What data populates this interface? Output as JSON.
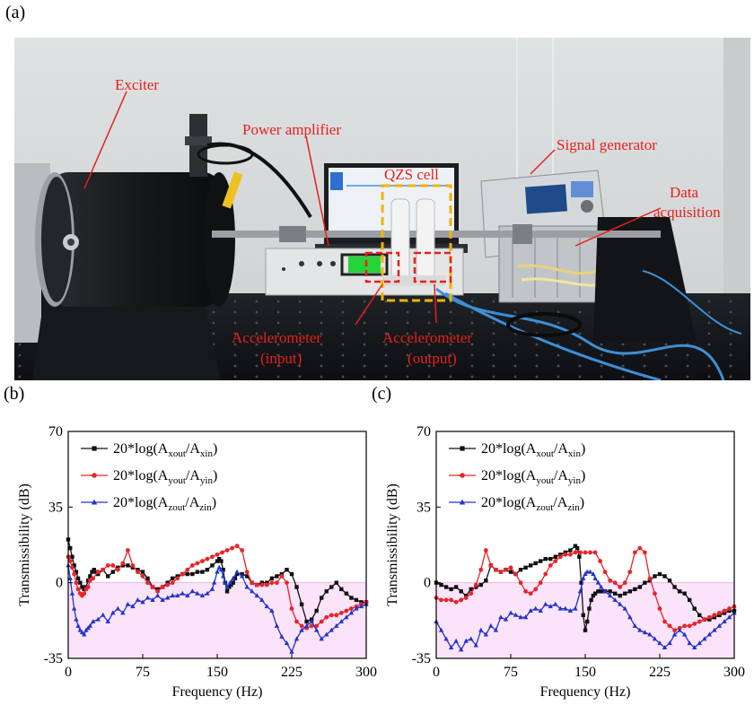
{
  "panel_labels": {
    "a": "(a)",
    "b": "(b)",
    "c": "(c)"
  },
  "photo": {
    "annotations": {
      "exciter": "Exciter",
      "power_amplifier": "Power amplifier",
      "qzs_cell": "QZS cell",
      "signal_generator": "Signal generator",
      "data_acquisition_1": "Data",
      "data_acquisition_2": "acquisition",
      "acc_in_1": "Accelerometer",
      "acc_in_2": "(input)",
      "acc_out_1": "Accelerometer",
      "acc_out_2": "(output)"
    },
    "colors": {
      "annotation": "#e8201a",
      "qzs_box": "#f0b400",
      "sensor_box": "#e8201a"
    }
  },
  "chart_data": [
    {
      "panel": "(b)",
      "type": "line",
      "xlabel": "Frequency (Hz)",
      "ylabel": "Transmissibility (dB)",
      "xlim": [
        0,
        300
      ],
      "ylim": [
        -35,
        70
      ],
      "xticks": [
        0,
        75,
        150,
        225,
        300
      ],
      "yticks": [
        -35,
        0,
        35,
        70
      ],
      "shade": {
        "from": -35,
        "to": 0,
        "color": "#fbe3fa"
      },
      "legend_position": "top-left",
      "series": [
        {
          "name": "20*log(A_xout/A_xin)",
          "legend": {
            "base": "20*log(A",
            "sub1": "xout",
            "mid": "/A",
            "sub2": "xin",
            "end": ")"
          },
          "color": "#111111",
          "marker": "square",
          "x": [
            0,
            2,
            4,
            6,
            8,
            10,
            12,
            14,
            16,
            18,
            20,
            22,
            24,
            26,
            28,
            30,
            35,
            40,
            45,
            50,
            55,
            60,
            65,
            70,
            75,
            80,
            85,
            90,
            95,
            100,
            105,
            110,
            115,
            120,
            125,
            130,
            135,
            140,
            145,
            150,
            152,
            154,
            156,
            158,
            160,
            162,
            164,
            166,
            168,
            170,
            175,
            180,
            185,
            190,
            195,
            200,
            205,
            210,
            215,
            220,
            225,
            230,
            235,
            240,
            245,
            250,
            255,
            260,
            265,
            270,
            275,
            280,
            285,
            290,
            295,
            300
          ],
          "y": [
            20,
            16,
            12,
            8,
            5,
            2,
            0,
            -2,
            -3,
            -2,
            1,
            3,
            5,
            6,
            5,
            4,
            6,
            3,
            5,
            7,
            8,
            8,
            7,
            6,
            5,
            2,
            -2,
            -3,
            -2,
            0,
            2,
            3,
            4,
            4,
            4,
            5,
            5,
            6,
            8,
            10,
            11,
            10,
            6,
            0,
            -4,
            -2,
            -1,
            0,
            2,
            4,
            4,
            3,
            0,
            -1,
            0,
            0,
            2,
            3,
            4,
            6,
            4,
            -2,
            -10,
            -18,
            -17,
            -13,
            -7,
            -4,
            -2,
            0,
            -3,
            -5,
            -7,
            -8,
            -9,
            -9
          ]
        },
        {
          "name": "20*log(A_yout/A_yin)",
          "legend": {
            "base": "20*log(A",
            "sub1": "yout",
            "mid": "/A",
            "sub2": "yin",
            "end": ")"
          },
          "color": "#e8252a",
          "marker": "circle",
          "x": [
            0,
            2,
            4,
            6,
            8,
            10,
            12,
            14,
            16,
            18,
            20,
            22,
            25,
            30,
            35,
            40,
            45,
            50,
            55,
            60,
            65,
            70,
            75,
            80,
            85,
            90,
            95,
            100,
            105,
            110,
            115,
            120,
            125,
            130,
            135,
            140,
            145,
            150,
            155,
            160,
            165,
            170,
            175,
            180,
            185,
            190,
            195,
            200,
            205,
            210,
            215,
            220,
            225,
            230,
            235,
            240,
            245,
            250,
            255,
            260,
            265,
            270,
            275,
            280,
            285,
            290,
            295,
            300
          ],
          "y": [
            12,
            10,
            7,
            4,
            0,
            -3,
            -5,
            -6,
            -5,
            -3,
            -2,
            1,
            2,
            5,
            6,
            8,
            8,
            6,
            9,
            15,
            8,
            5,
            3,
            0,
            -2,
            -4,
            -2,
            -1,
            0,
            2,
            4,
            6,
            8,
            9,
            10,
            11,
            12,
            13,
            14,
            15,
            16,
            17,
            15,
            5,
            0,
            -1,
            -1,
            -1,
            0,
            0,
            3,
            0,
            -12,
            -18,
            -20,
            -21,
            -20,
            -20,
            -18,
            -16,
            -15,
            -15,
            -14,
            -13,
            -12,
            -11,
            -10,
            -9
          ]
        },
        {
          "name": "20*log(A_zout/A_zin)",
          "legend": {
            "base": "20*log(A",
            "sub1": "zout",
            "mid": "/A",
            "sub2": "zin",
            "end": ")"
          },
          "color": "#2235c8",
          "marker": "triangle",
          "x": [
            0,
            2,
            4,
            6,
            8,
            10,
            12,
            14,
            16,
            18,
            20,
            22,
            25,
            30,
            35,
            40,
            45,
            50,
            55,
            60,
            65,
            70,
            75,
            80,
            85,
            90,
            95,
            100,
            105,
            110,
            115,
            120,
            125,
            130,
            135,
            140,
            145,
            147,
            150,
            152,
            154,
            156,
            158,
            160,
            163,
            166,
            170,
            175,
            180,
            185,
            190,
            195,
            200,
            205,
            210,
            215,
            220,
            225,
            230,
            235,
            240,
            245,
            250,
            255,
            260,
            265,
            270,
            275,
            280,
            285,
            290,
            295,
            300
          ],
          "y": [
            8,
            2,
            -5,
            -12,
            -17,
            -20,
            -22,
            -23,
            -24,
            -22,
            -21,
            -20,
            -18,
            -17,
            -15,
            -18,
            -14,
            -12,
            -14,
            -10,
            -11,
            -8,
            -9,
            -7,
            -8,
            -6,
            -8,
            -7,
            -6,
            -6,
            -5,
            -6,
            -4,
            -5,
            -6,
            -5,
            -3,
            0,
            5,
            7,
            6,
            3,
            0,
            -2,
            0,
            2,
            5,
            3,
            -2,
            -4,
            -6,
            -8,
            -11,
            -13,
            -20,
            -25,
            -28,
            -32,
            -26,
            -22,
            -20,
            -18,
            -22,
            -26,
            -24,
            -22,
            -20,
            -18,
            -16,
            -14,
            -12,
            -11,
            -10
          ]
        }
      ]
    },
    {
      "panel": "(c)",
      "type": "line",
      "xlabel": "Frequency (Hz)",
      "ylabel": "Transmissibility (dB)",
      "xlim": [
        0,
        300
      ],
      "ylim": [
        -35,
        70
      ],
      "xticks": [
        0,
        75,
        150,
        225,
        300
      ],
      "yticks": [
        -35,
        0,
        35,
        70
      ],
      "shade": {
        "from": -35,
        "to": 0,
        "color": "#fbe3fa"
      },
      "legend_position": "top-left",
      "series": [
        {
          "name": "20*log(A_xout/A_xin)",
          "legend": {
            "base": "20*log(A",
            "sub1": "xout",
            "mid": "/A",
            "sub2": "xin",
            "end": ")"
          },
          "color": "#111111",
          "marker": "square",
          "x": [
            0,
            5,
            10,
            15,
            20,
            25,
            30,
            35,
            40,
            45,
            50,
            55,
            60,
            65,
            70,
            75,
            80,
            85,
            90,
            95,
            100,
            105,
            110,
            115,
            120,
            125,
            130,
            135,
            140,
            142,
            144,
            146,
            148,
            150,
            152,
            154,
            156,
            158,
            160,
            163,
            166,
            170,
            175,
            180,
            185,
            190,
            195,
            200,
            205,
            210,
            215,
            220,
            225,
            230,
            235,
            240,
            245,
            250,
            255,
            260,
            265,
            270,
            275,
            280,
            285,
            290,
            295,
            300
          ],
          "y": [
            0,
            -1,
            -2,
            -3,
            -2,
            -4,
            -6,
            -3,
            -2,
            -1,
            1,
            8,
            6,
            5,
            6,
            5,
            4,
            6,
            7,
            8,
            9,
            10,
            11,
            11,
            12,
            13,
            14,
            15,
            17,
            16,
            12,
            0,
            -15,
            -22,
            -18,
            -12,
            -8,
            -6,
            -5,
            -4,
            -4,
            -4,
            -4,
            -5,
            -6,
            -5,
            -4,
            -3,
            -2,
            0,
            1,
            3,
            4,
            3,
            1,
            -2,
            -4,
            -5,
            -8,
            -12,
            -15,
            -17,
            -17,
            -16,
            -15,
            -14,
            -13,
            -13
          ]
        },
        {
          "name": "20*log(A_yout/A_yin)",
          "legend": {
            "base": "20*log(A",
            "sub1": "yout",
            "mid": "/A",
            "sub2": "yin",
            "end": ")"
          },
          "color": "#e8252a",
          "marker": "circle",
          "x": [
            0,
            5,
            10,
            15,
            20,
            25,
            30,
            35,
            40,
            45,
            50,
            55,
            60,
            65,
            70,
            75,
            80,
            85,
            90,
            95,
            100,
            105,
            110,
            115,
            120,
            125,
            130,
            135,
            140,
            145,
            150,
            155,
            160,
            165,
            170,
            175,
            180,
            185,
            190,
            195,
            200,
            205,
            210,
            215,
            220,
            225,
            230,
            235,
            240,
            245,
            250,
            255,
            260,
            265,
            270,
            275,
            280,
            285,
            290,
            295,
            300
          ],
          "y": [
            -7,
            -8,
            -8,
            -8,
            -9,
            -8,
            -7,
            -5,
            -1,
            6,
            15,
            8,
            6,
            5,
            6,
            7,
            4,
            0,
            -4,
            -5,
            -3,
            0,
            4,
            8,
            10,
            12,
            13,
            13,
            14,
            14,
            14,
            14,
            14,
            10,
            5,
            1,
            0,
            -2,
            0,
            5,
            14,
            16,
            14,
            2,
            -5,
            -12,
            -18,
            -20,
            -22,
            -21,
            -20,
            -20,
            -19,
            -18,
            -17,
            -16,
            -15,
            -14,
            -13,
            -12,
            -11
          ]
        },
        {
          "name": "20*log(A_zout/A_zin)",
          "legend": {
            "base": "20*log(A",
            "sub1": "zout",
            "mid": "/A",
            "sub2": "zin",
            "end": ")"
          },
          "color": "#2235c8",
          "marker": "triangle",
          "x": [
            0,
            5,
            10,
            15,
            20,
            25,
            30,
            35,
            40,
            45,
            50,
            55,
            60,
            65,
            70,
            75,
            80,
            85,
            90,
            95,
            100,
            105,
            110,
            115,
            120,
            125,
            130,
            135,
            140,
            145,
            148,
            150,
            152,
            155,
            158,
            160,
            163,
            166,
            170,
            175,
            180,
            185,
            190,
            195,
            200,
            205,
            210,
            215,
            220,
            225,
            230,
            235,
            240,
            245,
            250,
            255,
            260,
            265,
            270,
            275,
            280,
            285,
            290,
            295,
            300
          ],
          "y": [
            -18,
            -22,
            -26,
            -30,
            -27,
            -31,
            -27,
            -26,
            -29,
            -22,
            -24,
            -20,
            -22,
            -16,
            -17,
            -14,
            -15,
            -16,
            -16,
            -13,
            -12,
            -13,
            -10,
            -11,
            -10,
            -12,
            -12,
            -13,
            -12,
            -4,
            2,
            4,
            5,
            5,
            4,
            2,
            0,
            -2,
            -4,
            -6,
            -8,
            -10,
            -12,
            -16,
            -20,
            -22,
            -23,
            -24,
            -26,
            -28,
            -30,
            -28,
            -24,
            -22,
            -24,
            -28,
            -30,
            -28,
            -26,
            -24,
            -22,
            -20,
            -18,
            -16,
            -14
          ]
        }
      ]
    }
  ]
}
